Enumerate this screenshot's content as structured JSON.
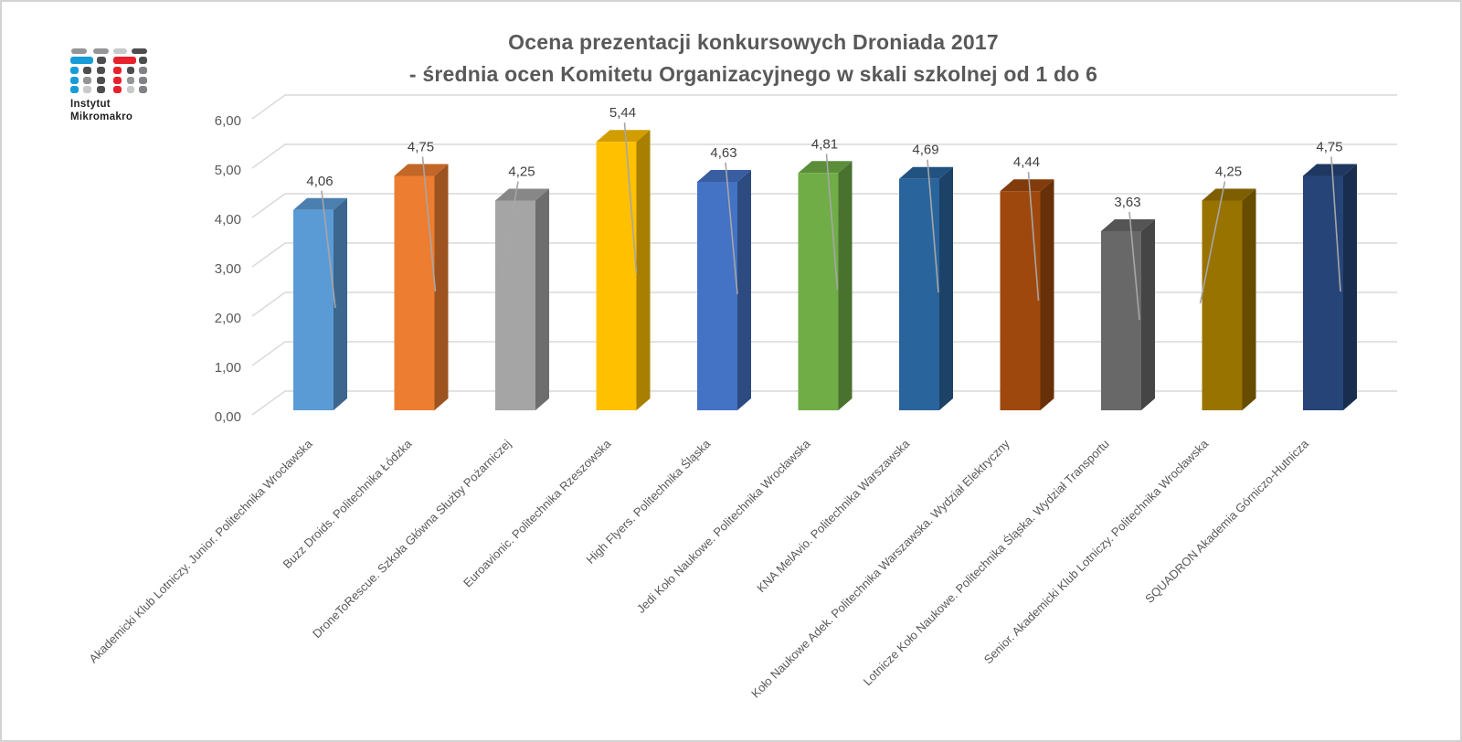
{
  "page": {
    "background": "#FFFFFF",
    "border_color": "#D3D3D3"
  },
  "logo": {
    "text_line1": "Instytut",
    "text_line2": "Mikromakro",
    "palette": {
      "blue": "#189CD8",
      "red": "#E8212D",
      "dark": "#4D4D4F",
      "mid": "#939598",
      "mid2": "#808285",
      "light": "#C7C8CA"
    },
    "grid": [
      {
        "y": 51,
        "h": 6,
        "cells": [
          [
            76,
            17,
            "mid"
          ],
          [
            100,
            17,
            "mid"
          ],
          [
            122,
            15,
            "light"
          ],
          [
            142,
            17,
            "dark"
          ]
        ]
      },
      {
        "y": 60,
        "h": 8,
        "cells": [
          [
            75,
            25,
            "blue"
          ],
          [
            104,
            10,
            "dark"
          ],
          [
            122,
            25,
            "red"
          ],
          [
            150,
            9,
            "dark"
          ]
        ]
      },
      {
        "y": 71,
        "h": 8,
        "cells": [
          [
            75,
            9,
            "blue"
          ],
          [
            89,
            9,
            "dark"
          ],
          [
            104,
            9,
            "dark"
          ],
          [
            122,
            9,
            "red"
          ],
          [
            137,
            8,
            "dark"
          ],
          [
            150,
            9,
            "mid2"
          ]
        ]
      },
      {
        "y": 82,
        "h": 8,
        "cells": [
          [
            75,
            9,
            "blue"
          ],
          [
            89,
            9,
            "mid"
          ],
          [
            104,
            9,
            "dark"
          ],
          [
            122,
            9,
            "red"
          ],
          [
            137,
            8,
            "mid"
          ],
          [
            150,
            9,
            "mid2"
          ]
        ]
      },
      {
        "y": 92,
        "h": 8,
        "cells": [
          [
            75,
            9,
            "blue"
          ],
          [
            89,
            9,
            "light"
          ],
          [
            104,
            9,
            "dark"
          ],
          [
            122,
            9,
            "red"
          ],
          [
            137,
            8,
            "light"
          ],
          [
            150,
            9,
            "mid2"
          ]
        ]
      }
    ]
  },
  "chart_data": {
    "type": "bar",
    "style": "3d-column",
    "title_line1": "Ocena prezentacji konkursowych Droniada 2017",
    "title_line2": "- średnia ocen Komitetu Organizacyjnego w skali szkolnej od 1 do 6",
    "categories": [
      "Akademicki Klub Lotniczy. Junior. Politechnika Wrocławska",
      "Buzz Droids. Politechnika Łódzka",
      "DroneToRescue. Szkoła Główna Służby Pożarniczej",
      "Euroavionic. Politechnika Rzeszowska",
      "High Flyers. Politechnika Śląska",
      "Jedi Koło Naukowe. Politechnika Wrocławska",
      "KNA MelAvio. Politechnika Warszawska",
      "Koło Naukowe Adek. Politechnika Warszawska. Wydział Elektryczny",
      "Lotnicze Koło Naukowe. Politechnika Śląska. Wydział Transportu",
      "Senior. Akademicki Klub Lotniczy. Politechnika Wrocławska",
      "SQUADRON Akademia Górniczo-Hutnicza"
    ],
    "values": [
      4.06,
      4.75,
      4.25,
      5.44,
      4.63,
      4.81,
      4.69,
      4.44,
      3.63,
      4.25,
      4.75
    ],
    "value_labels": [
      "4,06",
      "4,75",
      "4,25",
      "5,44",
      "4,63",
      "4,81",
      "4,69",
      "4,44",
      "3,63",
      "4,25",
      "4,75"
    ],
    "bar_colors": [
      "#5B9BD5",
      "#ED7D31",
      "#A5A5A5",
      "#FFC000",
      "#4472C4",
      "#70AD47",
      "#2A649C",
      "#9E480E",
      "#686868",
      "#997300",
      "#264478"
    ],
    "ylim": [
      0,
      6
    ],
    "y_ticks": [
      "0,00",
      "1,00",
      "2,00",
      "3,00",
      "4,00",
      "5,00",
      "6,00"
    ],
    "gridlines": "horizontal",
    "legend": "none",
    "axis_text_color": "#595959",
    "data_label_color": "#404040",
    "gridline_color": "#D9D9D9",
    "leader_line_color": "#A6A6A6"
  }
}
